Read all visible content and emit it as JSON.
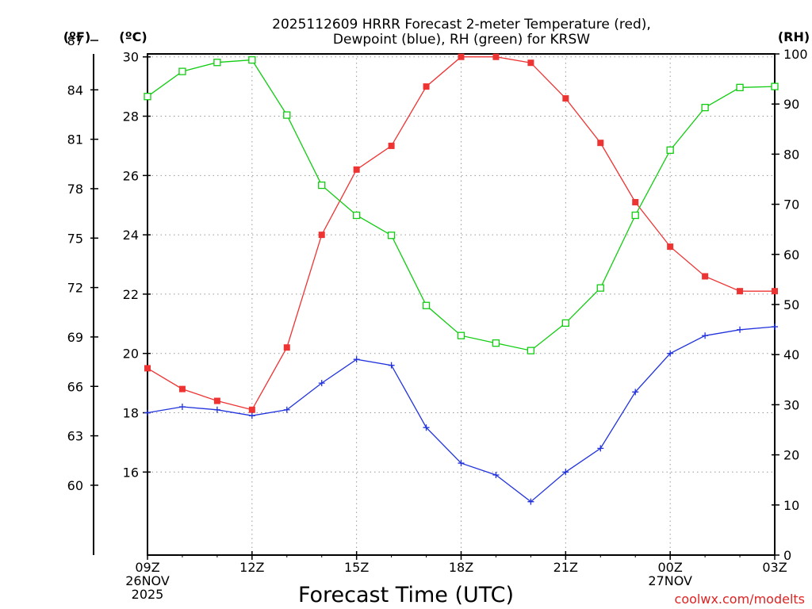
{
  "chart_data": {
    "type": "line",
    "title": "2025112609 HRRR Forecast 2-meter Temperature (red),",
    "title_line2": "Dewpoint (blue), RH (green) for KRSW",
    "xlabel": "Forecast Time (UTC)",
    "credit": "coolwx.com/modelts",
    "units": {
      "fahrenheit": "(ºF)",
      "celsius": "(ºC)",
      "rh": "(RH)"
    },
    "x_ticks": [
      {
        "hour": 0,
        "lines": [
          "09Z",
          "26NOV",
          "2025"
        ]
      },
      {
        "hour": 3,
        "lines": [
          "12Z"
        ]
      },
      {
        "hour": 6,
        "lines": [
          "15Z"
        ]
      },
      {
        "hour": 9,
        "lines": [
          "18Z"
        ]
      },
      {
        "hour": 12,
        "lines": [
          "21Z"
        ]
      },
      {
        "hour": 15,
        "lines": [
          "00Z",
          "27NOV"
        ]
      },
      {
        "hour": 18,
        "lines": [
          "03Z"
        ]
      }
    ],
    "xlim": [
      0,
      18
    ],
    "y_left_celsius": {
      "range": [
        13.2,
        30.1
      ],
      "ticks": [
        16,
        18,
        20,
        22,
        24,
        26,
        28,
        30
      ],
      "labels": [
        "16",
        "18",
        "20",
        "22",
        "24",
        "26",
        "28",
        "30"
      ]
    },
    "y_left_fahrenheit": {
      "ticks": [
        60,
        63,
        66,
        69,
        72,
        75,
        78,
        81,
        84,
        87
      ],
      "labels": [
        "60",
        "63",
        "66",
        "69",
        "72",
        "75",
        "78",
        "81",
        "84",
        "87"
      ]
    },
    "y_right_rh": {
      "range": [
        0,
        100
      ],
      "ticks": [
        0,
        10,
        20,
        30,
        40,
        50,
        60,
        70,
        80,
        90,
        100
      ],
      "labels": [
        "0",
        "10",
        "20",
        "30",
        "40",
        "50",
        "60",
        "70",
        "80",
        "90",
        "100"
      ]
    },
    "grid": true,
    "x": [
      0,
      1,
      2,
      3,
      4,
      5,
      6,
      7,
      8,
      9,
      10,
      11,
      12,
      13,
      14,
      15,
      16,
      17,
      18
    ],
    "series": [
      {
        "name": "2-meter Temperature",
        "axis": "celsius",
        "color": "#ee3333",
        "marker": "filled-square",
        "values": [
          19.5,
          18.8,
          18.4,
          18.1,
          20.2,
          24.0,
          26.2,
          27.0,
          29.0,
          30.0,
          30.0,
          29.8,
          28.6,
          27.1,
          25.1,
          23.6,
          22.6,
          22.1,
          22.1
        ]
      },
      {
        "name": "Dewpoint",
        "axis": "celsius",
        "color": "#2233dd",
        "marker": "plus",
        "values": [
          18.0,
          18.2,
          18.1,
          17.9,
          18.1,
          19.0,
          19.8,
          19.6,
          17.5,
          16.3,
          15.9,
          15.0,
          16.0,
          16.8,
          18.7,
          20.0,
          20.6,
          20.8,
          20.9
        ]
      },
      {
        "name": "RH",
        "axis": "rh",
        "color": "#11cc11",
        "marker": "open-square",
        "values": [
          91.5,
          96.5,
          98.3,
          98.8,
          87.8,
          73.8,
          67.8,
          63.8,
          49.8,
          43.8,
          42.3,
          40.8,
          46.3,
          53.3,
          67.8,
          80.8,
          89.3,
          93.3,
          93.5
        ]
      }
    ]
  }
}
